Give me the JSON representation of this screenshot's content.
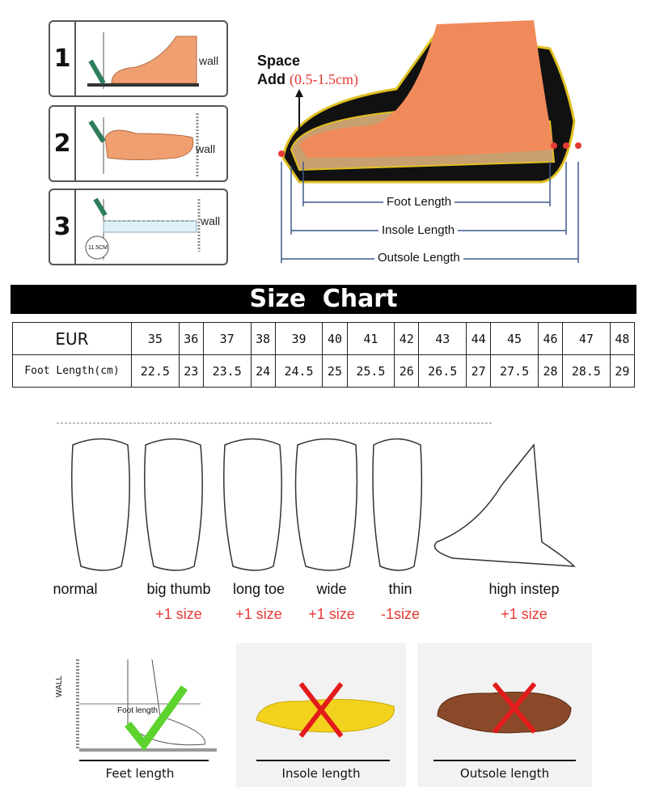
{
  "steps": [
    {
      "num": "1",
      "wall": "wall"
    },
    {
      "num": "2",
      "wall": "wall"
    },
    {
      "num": "3",
      "wall": "wall",
      "badge": "11.5CM"
    }
  ],
  "shoe_diagram": {
    "space_label": "Space",
    "add_label": "Add",
    "add_range": "(0.5-1.5cm)",
    "foot_length": "Foot Length",
    "insole_length": "Insole Length",
    "outsole_length": "Outsole Length",
    "accent": "#e53935"
  },
  "banner": {
    "title": "Size  Chart"
  },
  "size_table": {
    "rows": [
      {
        "header": "EUR",
        "values": [
          "35",
          "36",
          "37",
          "38",
          "39",
          "40",
          "41",
          "42",
          "43",
          "44",
          "45",
          "46",
          "47",
          "48"
        ]
      },
      {
        "header": "Foot Length(cm)",
        "values": [
          "22.5",
          "23",
          "23.5",
          "24",
          "24.5",
          "25",
          "25.5",
          "26",
          "26.5",
          "27",
          "27.5",
          "28",
          "28.5",
          "29"
        ]
      }
    ]
  },
  "foot_types": [
    {
      "name": "normal",
      "adjust": ""
    },
    {
      "name": "big thumb",
      "adjust": "+1 size"
    },
    {
      "name": "long toe",
      "adjust": "+1 size"
    },
    {
      "name": "wide",
      "adjust": "+1 size"
    },
    {
      "name": "thin",
      "adjust": "-1size"
    },
    {
      "name": "high instep",
      "adjust": "+1 size"
    }
  ],
  "measure_panels": [
    {
      "label": "Feet length",
      "wall": "WALL",
      "note": "Foot length",
      "icon": "check-icon"
    },
    {
      "label": "Insole length",
      "icon": "cross-icon"
    },
    {
      "label": "Outsole length",
      "icon": "cross-icon"
    }
  ]
}
